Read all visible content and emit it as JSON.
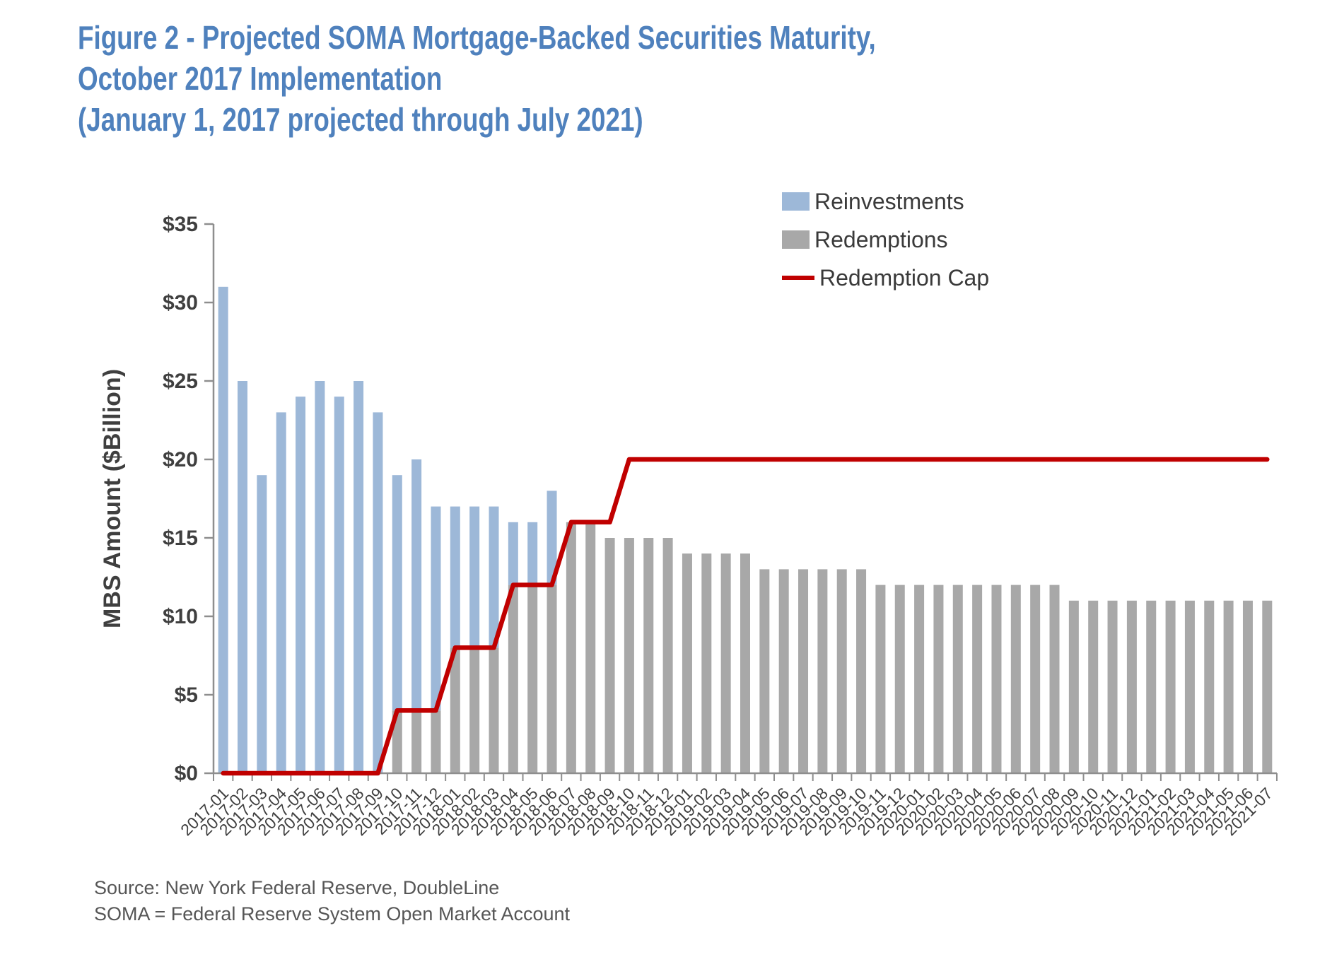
{
  "title": {
    "line1": "Figure 2 - Projected SOMA Mortgage-Backed Securities Maturity,",
    "line2": "October 2017 Implementation",
    "line3": "(January 1, 2017 projected through July 2021)"
  },
  "legend": {
    "items": [
      {
        "label": "Reinvestments",
        "color": "#9DB8D8",
        "swatch": "square"
      },
      {
        "label": "Redemptions",
        "color": "#A8A8A8",
        "swatch": "square"
      },
      {
        "label": "Redemption Cap",
        "color": "#C00000",
        "swatch": "line"
      }
    ]
  },
  "y_axis": {
    "title": "MBS Amount ($Billion)",
    "tick_labels": [
      "$0",
      "$5",
      "$10",
      "$15",
      "$20",
      "$25",
      "$30",
      "$35"
    ]
  },
  "source": {
    "line1": "Source: New York Federal Reserve, DoubleLine",
    "line2": "SOMA = Federal Reserve System Open Market Account"
  },
  "chart_data": {
    "type": "bar",
    "stacked": true,
    "title": "Figure 2 - Projected SOMA Mortgage-Backed Securities Maturity, October 2017 Implementation (January 1, 2017 projected through July 2021)",
    "xlabel": "",
    "ylabel": "MBS Amount ($Billion)",
    "ylim": [
      0,
      35
    ],
    "ytick_step": 5,
    "grid": false,
    "legend_position": "top-right",
    "categories": [
      "2017-01",
      "2017-02",
      "2017-03",
      "2017-04",
      "2017-05",
      "2017-06",
      "2017-07",
      "2017-08",
      "2017-09",
      "2017-10",
      "2017-11",
      "2017-12",
      "2018-01",
      "2018-02",
      "2018-03",
      "2018-04",
      "2018-05",
      "2018-06",
      "2018-07",
      "2018-08",
      "2018-09",
      "2018-10",
      "2018-11",
      "2018-12",
      "2019-01",
      "2019-02",
      "2019-03",
      "2019-04",
      "2019-05",
      "2019-06",
      "2019-07",
      "2019-08",
      "2019-09",
      "2019-10",
      "2019-11",
      "2019-12",
      "2020-01",
      "2020-02",
      "2020-03",
      "2020-04",
      "2020-05",
      "2020-06",
      "2020-07",
      "2020-08",
      "2020-09",
      "2020-10",
      "2020-11",
      "2020-12",
      "2021-01",
      "2021-02",
      "2021-03",
      "2021-04",
      "2021-05",
      "2021-06",
      "2021-07"
    ],
    "series": [
      {
        "name": "Redemptions",
        "color": "#A8A8A8",
        "values": [
          0,
          0,
          0,
          0,
          0,
          0,
          0,
          0,
          0,
          4,
          4,
          4,
          8,
          8,
          8,
          12,
          12,
          12,
          16,
          16,
          15,
          15,
          15,
          15,
          14,
          14,
          14,
          14,
          13,
          13,
          13,
          13,
          13,
          13,
          12,
          12,
          12,
          12,
          12,
          12,
          12,
          12,
          12,
          12,
          11,
          11,
          11,
          11,
          11,
          11,
          11,
          11,
          11,
          11,
          11
        ]
      },
      {
        "name": "Reinvestments",
        "color": "#9DB8D8",
        "values": [
          31,
          25,
          19,
          23,
          24,
          25,
          24,
          25,
          23,
          15,
          16,
          13,
          9,
          9,
          9,
          4,
          4,
          6,
          0,
          0,
          0,
          0,
          0,
          0,
          0,
          0,
          0,
          0,
          0,
          0,
          0,
          0,
          0,
          0,
          0,
          0,
          0,
          0,
          0,
          0,
          0,
          0,
          0,
          0,
          0,
          0,
          0,
          0,
          0,
          0,
          0,
          0,
          0,
          0,
          0
        ]
      }
    ],
    "line_series": {
      "name": "Redemption Cap",
      "color": "#C00000",
      "values": [
        0,
        0,
        0,
        0,
        0,
        0,
        0,
        0,
        0,
        4,
        4,
        4,
        8,
        8,
        8,
        12,
        12,
        12,
        16,
        16,
        16,
        20,
        20,
        20,
        20,
        20,
        20,
        20,
        20,
        20,
        20,
        20,
        20,
        20,
        20,
        20,
        20,
        20,
        20,
        20,
        20,
        20,
        20,
        20,
        20,
        20,
        20,
        20,
        20,
        20,
        20,
        20,
        20,
        20,
        20
      ]
    }
  }
}
